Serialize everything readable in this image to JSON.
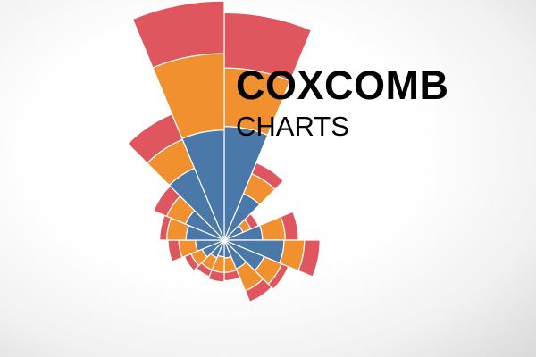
{
  "chart_data": {
    "type": "coxcomb",
    "title": "COXCOMB",
    "subtitle": "CHARTS",
    "grid": false,
    "legend": "none",
    "series": [
      {
        "color": "#4a78a8",
        "values": [
          9.5,
          4.2,
          1.7,
          3.2,
          5.0,
          3.6,
          2.6,
          1.5,
          1.4,
          1.6,
          2.0,
          2.4,
          3.2,
          3.5,
          6.5,
          9.2
        ]
      },
      {
        "color": "#f0902e",
        "values": [
          14.4,
          6.0,
          2.4,
          5.1,
          6.7,
          5.2,
          4.6,
          2.7,
          2.7,
          2.7,
          3.0,
          3.8,
          4.8,
          5.2,
          9.1,
          15.6
        ]
      },
      {
        "color": "#e0565f",
        "values": [
          19.0,
          7.0,
          3.1,
          6.2,
          8.0,
          5.8,
          5.6,
          3.4,
          3.5,
          3.3,
          3.6,
          4.7,
          5.4,
          6.4,
          11.4,
          20.0
        ]
      }
    ]
  },
  "colors": {
    "divider": "#ffffff",
    "text": "#000000"
  }
}
